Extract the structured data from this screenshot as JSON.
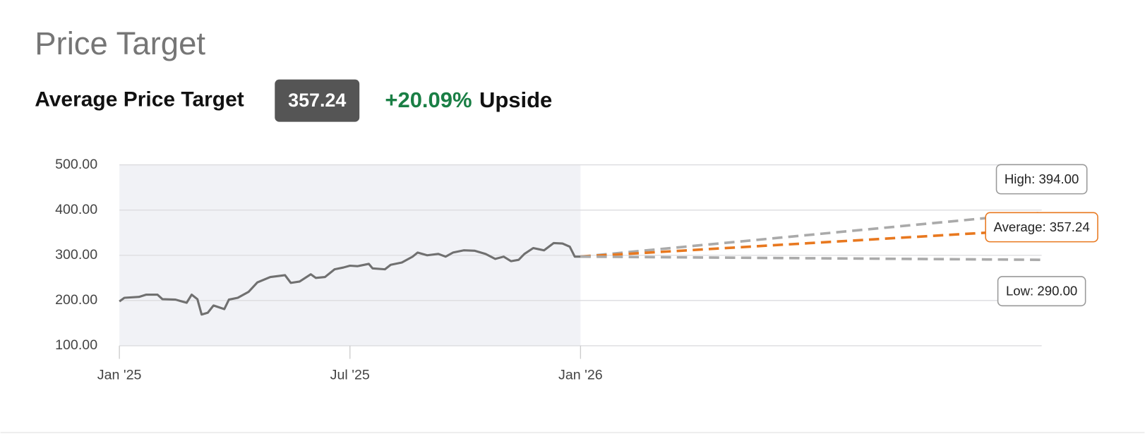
{
  "header": {
    "title": "Price Target",
    "average_label": "Average Price Target",
    "average_value": "357.24",
    "upside_value": "+20.09%",
    "upside_label": "Upside"
  },
  "chart_data": {
    "type": "line",
    "ylim": [
      100,
      500
    ],
    "yticks": [
      {
        "value": 100,
        "label": "100.00"
      },
      {
        "value": 200,
        "label": "200.00"
      },
      {
        "value": 300,
        "label": "300.00"
      },
      {
        "value": 400,
        "label": "400.00"
      },
      {
        "value": 500,
        "label": "500.00"
      }
    ],
    "xlim": [
      0,
      24
    ],
    "xticks": [
      {
        "value": 0,
        "label": "Jan '25"
      },
      {
        "value": 6,
        "label": "Jul '25"
      },
      {
        "value": 12,
        "label": "Jan '26"
      }
    ],
    "grid": true,
    "shaded_xlim": [
      0,
      12
    ],
    "series": [
      {
        "color": "#707070",
        "x": [
          0,
          0.13,
          0.51,
          0.7,
          0.99,
          1.12,
          1.46,
          1.75,
          1.88,
          2.03,
          2.14,
          2.3,
          2.45,
          2.73,
          2.85,
          3.08,
          3.36,
          3.59,
          3.93,
          4.31,
          4.46,
          4.69,
          4.98,
          5.11,
          5.35,
          5.6,
          5.83,
          6,
          6.2,
          6.49,
          6.59,
          6.91,
          7.06,
          7.35,
          7.63,
          7.76,
          8.01,
          8.3,
          8.49,
          8.68,
          8.96,
          9.25,
          9.53,
          9.78,
          10,
          10.19,
          10.39,
          10.54,
          10.77,
          11.05,
          11.3,
          11.53,
          11.72,
          11.85,
          12
        ],
        "values": [
          198,
          206,
          208,
          213,
          213,
          203,
          202,
          195,
          213,
          203,
          169,
          173,
          189,
          181,
          202,
          206,
          219,
          240,
          252,
          256,
          239,
          242,
          258,
          250,
          252,
          269,
          273,
          277,
          276,
          281,
          271,
          269,
          279,
          284,
          297,
          306,
          300,
          303,
          297,
          306,
          311,
          310,
          303,
          292,
          297,
          287,
          290,
          303,
          316,
          311,
          327,
          326,
          319,
          297,
          297
        ]
      },
      {
        "color": "#aaaaaa",
        "dashed": true,
        "x": [
          12,
          24
        ],
        "values": [
          297,
          394
        ],
        "value_labels": [
          null,
          "High: 394.00"
        ]
      },
      {
        "color": "#e8781f",
        "dashed": true,
        "x": [
          12,
          24
        ],
        "values": [
          297,
          357.24
        ],
        "value_labels": [
          null,
          "Average: 357.24"
        ]
      },
      {
        "color": "#aaaaaa",
        "dashed": true,
        "x": [
          12,
          24
        ],
        "values": [
          297,
          290
        ],
        "value_labels": [
          null,
          "Low: 290.00"
        ]
      }
    ]
  }
}
